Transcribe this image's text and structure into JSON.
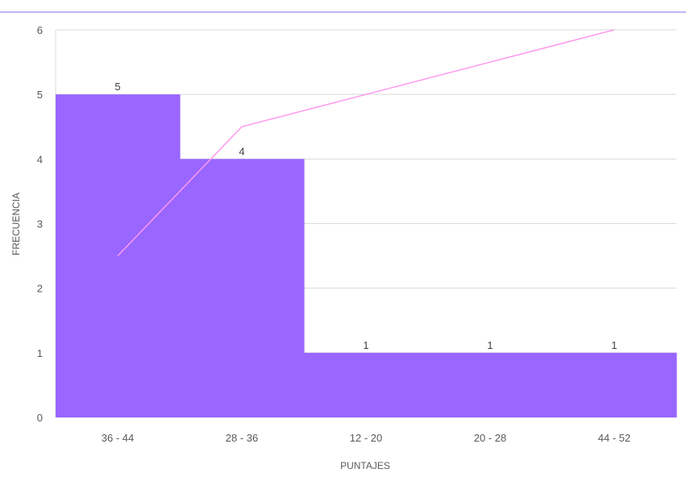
{
  "chart_data": {
    "type": "bar",
    "categories": [
      "36 - 44",
      "28 - 36",
      "12 - 20",
      "20 - 28",
      "44 - 52"
    ],
    "values": [
      5,
      4,
      1,
      1,
      1
    ],
    "data_labels": [
      "5",
      "4",
      "1",
      "1",
      "1"
    ],
    "line": {
      "values": [
        2.5,
        4.5,
        5,
        5.5,
        6
      ]
    },
    "title": "",
    "xlabel": "PUNTAJES",
    "ylabel": "FRECUENCIA",
    "ylim": [
      0,
      6
    ],
    "yticks": [
      "0",
      "1",
      "2",
      "3",
      "4",
      "5",
      "6"
    ],
    "grid": true,
    "legend": "none",
    "colors": {
      "bar": "#9966ff",
      "line": "#ff99ee",
      "grid": "#d9d9d9",
      "top_rule": "#7a6fe0",
      "text": "#595959"
    }
  }
}
